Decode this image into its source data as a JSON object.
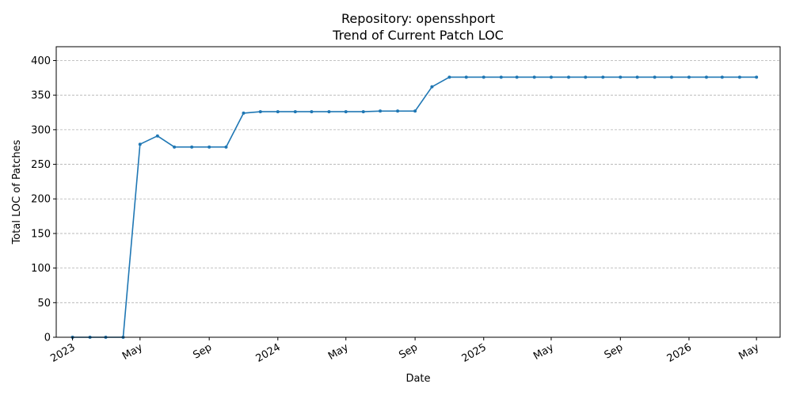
{
  "chart_data": {
    "type": "line",
    "title": "Repository: opensshport",
    "subtitle": "Trend of Current Patch LOC",
    "xlabel": "Date",
    "ylabel": "Total LOC of Patches",
    "ylim": [
      0,
      420
    ],
    "xlim": [
      "2022-12-03",
      "2026-06-12"
    ],
    "y_ticks": [
      0,
      50,
      100,
      150,
      200,
      250,
      300,
      350,
      400
    ],
    "x_ticks": [
      {
        "date": "2023-01-01",
        "label": "2023"
      },
      {
        "date": "2023-05-01",
        "label": "May"
      },
      {
        "date": "2023-09-01",
        "label": "Sep"
      },
      {
        "date": "2024-01-01",
        "label": "2024"
      },
      {
        "date": "2024-05-01",
        "label": "May"
      },
      {
        "date": "2024-09-01",
        "label": "Sep"
      },
      {
        "date": "2025-01-01",
        "label": "2025"
      },
      {
        "date": "2025-05-01",
        "label": "May"
      },
      {
        "date": "2025-09-01",
        "label": "Sep"
      },
      {
        "date": "2026-01-01",
        "label": "2026"
      },
      {
        "date": "2026-05-01",
        "label": "May"
      }
    ],
    "grid": "y",
    "series": [
      {
        "color": "#1f77b4",
        "points": [
          [
            "2023-01-01",
            0
          ],
          [
            "2023-02-01",
            0
          ],
          [
            "2023-03-01",
            0
          ],
          [
            "2023-04-01",
            0
          ],
          [
            "2023-05-01",
            279
          ],
          [
            "2023-06-01",
            291
          ],
          [
            "2023-07-01",
            275
          ],
          [
            "2023-08-01",
            275
          ],
          [
            "2023-09-01",
            275
          ],
          [
            "2023-10-01",
            275
          ],
          [
            "2023-11-01",
            324
          ],
          [
            "2023-12-01",
            326
          ],
          [
            "2024-01-01",
            326
          ],
          [
            "2024-02-01",
            326
          ],
          [
            "2024-03-01",
            326
          ],
          [
            "2024-04-01",
            326
          ],
          [
            "2024-05-01",
            326
          ],
          [
            "2024-06-01",
            326
          ],
          [
            "2024-07-01",
            327
          ],
          [
            "2024-08-01",
            327
          ],
          [
            "2024-09-01",
            327
          ],
          [
            "2024-10-01",
            362
          ],
          [
            "2024-11-01",
            376
          ],
          [
            "2024-12-01",
            376
          ],
          [
            "2025-01-01",
            376
          ],
          [
            "2025-02-01",
            376
          ],
          [
            "2025-03-01",
            376
          ],
          [
            "2025-04-01",
            376
          ],
          [
            "2025-05-01",
            376
          ],
          [
            "2025-06-01",
            376
          ],
          [
            "2025-07-01",
            376
          ],
          [
            "2025-08-01",
            376
          ],
          [
            "2025-09-01",
            376
          ],
          [
            "2025-10-01",
            376
          ],
          [
            "2025-11-01",
            376
          ],
          [
            "2025-12-01",
            376
          ],
          [
            "2026-01-01",
            376
          ],
          [
            "2026-02-01",
            376
          ],
          [
            "2026-03-01",
            376
          ],
          [
            "2026-04-01",
            376
          ],
          [
            "2026-05-01",
            376
          ]
        ]
      }
    ]
  }
}
